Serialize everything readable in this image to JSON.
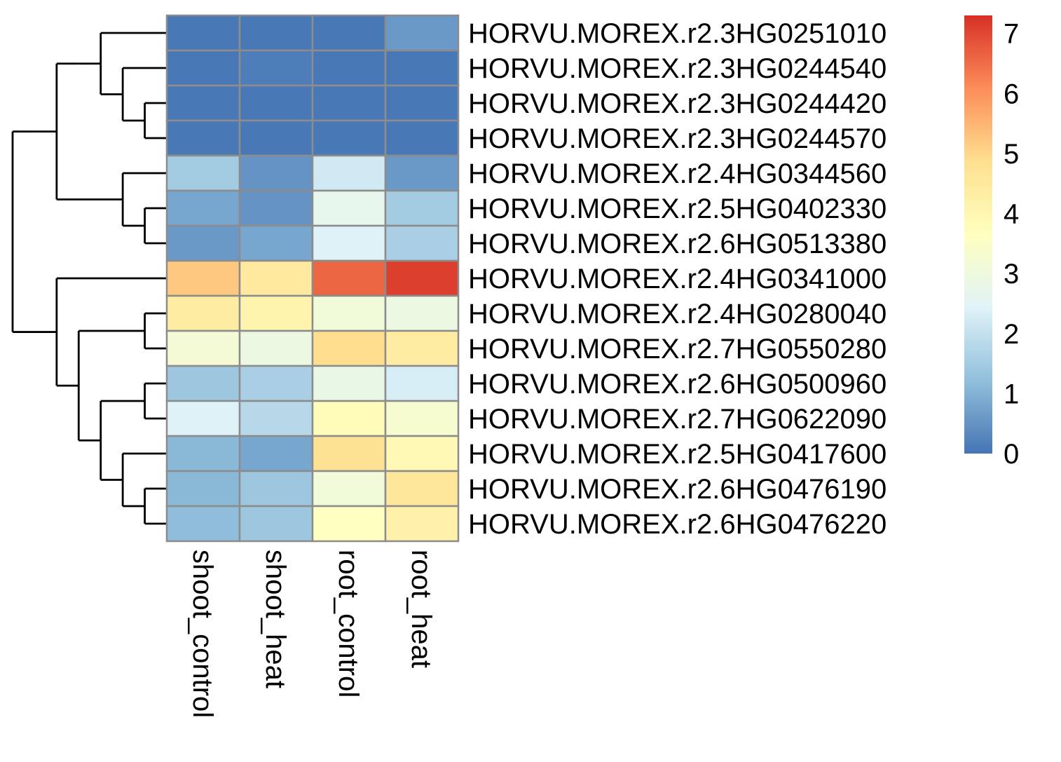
{
  "chart_data": {
    "type": "heatmap",
    "columns": [
      "shoot_control",
      "shoot_heat",
      "root_control",
      "root_heat"
    ],
    "rows": [
      "HORVU.MOREX.r2.3HG0251010",
      "HORVU.MOREX.r2.3HG0244540",
      "HORVU.MOREX.r2.3HG0244420",
      "HORVU.MOREX.r2.3HG0244570",
      "HORVU.MOREX.r2.4HG0344560",
      "HORVU.MOREX.r2.5HG0402330",
      "HORVU.MOREX.r2.6HG0513380",
      "HORVU.MOREX.r2.4HG0341000",
      "HORVU.MOREX.r2.4HG0280040",
      "HORVU.MOREX.r2.7HG0550280",
      "HORVU.MOREX.r2.6HG0500960",
      "HORVU.MOREX.r2.7HG0622090",
      "HORVU.MOREX.r2.5HG0417600",
      "HORVU.MOREX.r2.6HG0476190",
      "HORVU.MOREX.r2.6HG0476220"
    ],
    "values": [
      [
        0.05,
        0.05,
        0.05,
        0.6
      ],
      [
        0.05,
        0.15,
        0.05,
        0.05
      ],
      [
        0.05,
        0.05,
        0.05,
        0.05
      ],
      [
        0.05,
        0.05,
        0.05,
        0.05
      ],
      [
        1.5,
        0.5,
        2.2,
        0.6
      ],
      [
        0.8,
        0.5,
        2.7,
        1.5
      ],
      [
        0.6,
        0.8,
        2.4,
        1.6
      ],
      [
        5.2,
        4.5,
        6.6,
        7.1
      ],
      [
        4.4,
        4.1,
        3.1,
        2.9
      ],
      [
        3.2,
        2.9,
        4.9,
        4.4
      ],
      [
        1.4,
        1.6,
        2.8,
        2.3
      ],
      [
        2.4,
        1.8,
        3.8,
        3.3
      ],
      [
        1.1,
        0.8,
        4.8,
        3.9
      ],
      [
        1.1,
        1.4,
        3.1,
        4.6
      ],
      [
        1.2,
        1.4,
        3.6,
        4.2
      ]
    ],
    "colorbar": {
      "min": 0,
      "max": 7.3,
      "ticks": [
        0,
        1,
        2,
        3,
        4,
        5,
        6,
        7
      ]
    },
    "colormap": [
      "#4575b4",
      "#91bfdb",
      "#e0f3f8",
      "#ffffbf",
      "#fee090",
      "#fc8d59",
      "#d73027"
    ],
    "legend_position": "top-right",
    "dendrogram": "rows",
    "grid": false
  }
}
